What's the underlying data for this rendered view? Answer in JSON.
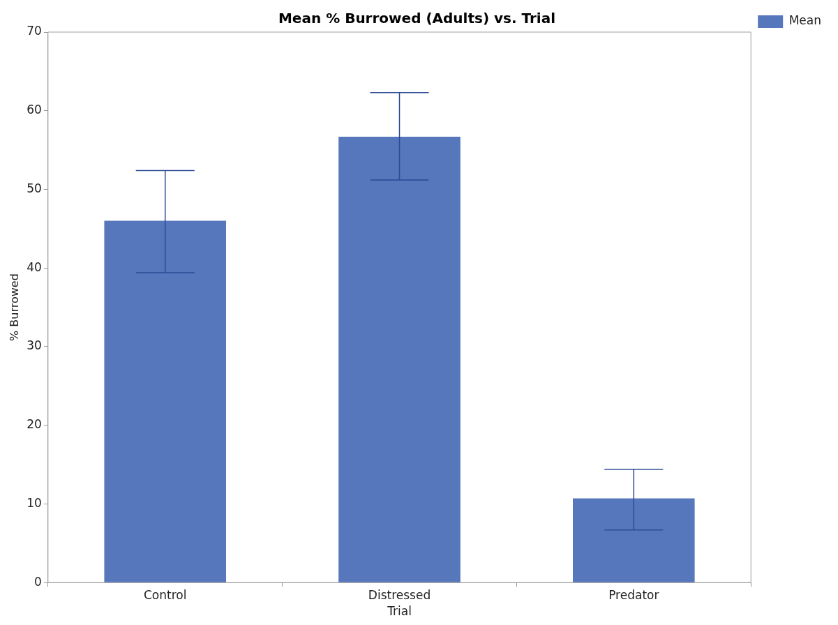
{
  "chart_data": {
    "type": "bar",
    "title": "Mean % Burrowed (Adults) vs. Trial",
    "xlabel": "Trial",
    "ylabel": "% Burrowed",
    "categories": [
      "Control",
      "Distressed",
      "Predator"
    ],
    "series": [
      {
        "name": "Mean",
        "color": "#5677bb",
        "values": [
          46.0,
          56.7,
          10.7
        ],
        "errors": [
          [
            39.4,
            52.4
          ],
          [
            51.2,
            62.3
          ],
          [
            6.7,
            14.4
          ]
        ]
      }
    ],
    "ylim": [
      0,
      70
    ],
    "yticks": [
      0,
      10,
      20,
      30,
      40,
      50,
      60,
      70
    ],
    "grid": false,
    "legend": "top right"
  }
}
